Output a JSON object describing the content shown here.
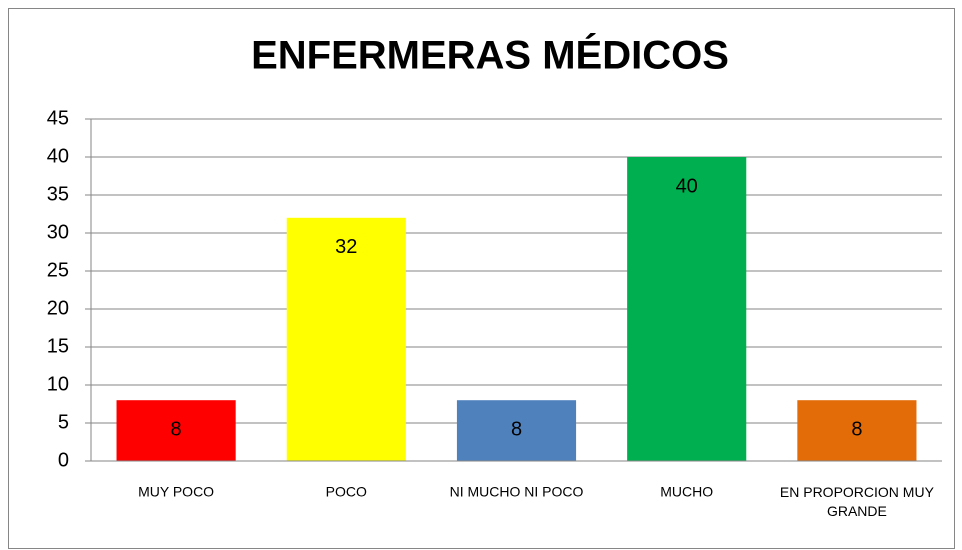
{
  "chart_data": {
    "type": "bar",
    "title": "ENFERMERAS MÉDICOS",
    "categories": [
      "MUY POCO",
      "POCO",
      "NI MUCHO NI POCO",
      "MUCHO",
      "EN PROPORCION MUY GRANDE"
    ],
    "values": [
      8,
      32,
      8,
      40,
      8
    ],
    "colors": [
      "#ff0000",
      "#ffff00",
      "#4f81bd",
      "#00b050",
      "#e36c09"
    ],
    "ylim": [
      0,
      45
    ],
    "yticks": [
      0,
      5,
      10,
      15,
      20,
      25,
      30,
      35,
      40,
      45
    ],
    "grid": true
  }
}
